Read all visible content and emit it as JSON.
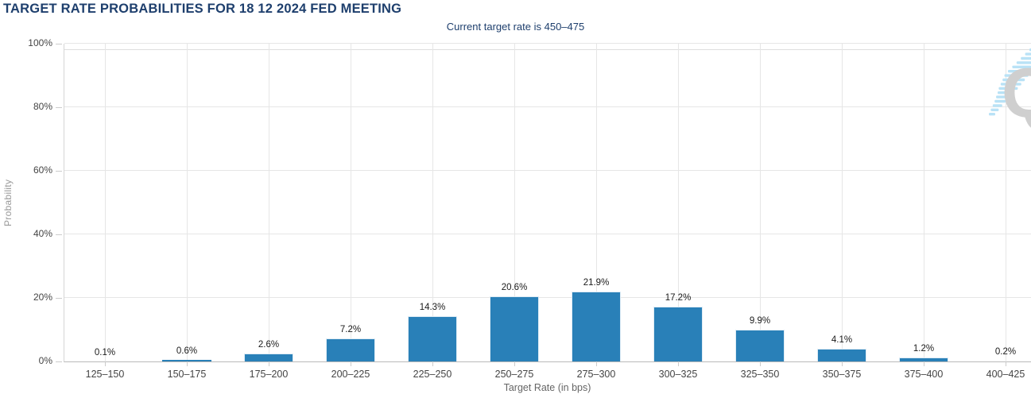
{
  "chart_data": {
    "type": "bar",
    "title": "TARGET RATE PROBABILITIES FOR 18 12 2024 FED MEETING",
    "subtitle": "Current target rate is 450–475",
    "categories": [
      "125–150",
      "150–175",
      "175–200",
      "200–225",
      "225–250",
      "250–275",
      "275–300",
      "300–325",
      "325–350",
      "350–375",
      "375–400",
      "400–425"
    ],
    "values": [
      0.1,
      0.6,
      2.6,
      7.2,
      14.3,
      20.6,
      21.9,
      17.2,
      9.9,
      4.1,
      1.2,
      0.2
    ],
    "value_labels": [
      "0.1%",
      "0.6%",
      "2.6%",
      "7.2%",
      "14.3%",
      "20.6%",
      "21.9%",
      "17.2%",
      "9.9%",
      "4.1%",
      "1.2%",
      "0.2%"
    ],
    "xlabel": "Target Rate (in bps)",
    "ylabel": "Probability",
    "ylim": [
      0,
      100
    ],
    "ytick_values": [
      0,
      20,
      40,
      60,
      80,
      100
    ],
    "ytick_labels": [
      "0%",
      "20%",
      "40%",
      "60%",
      "80%",
      "100%"
    ],
    "grid": true,
    "legend": "none",
    "bar_color": "#2980b8"
  },
  "watermark": {
    "letter": "Q",
    "letter_color": "#cfcfcf",
    "stripe_color": "#b9e2f6"
  },
  "colors": {
    "title": "#1e3f6d",
    "grid": "#e6e6e6",
    "axis_line": "#b9b9b9",
    "tick": "#cccccc"
  }
}
